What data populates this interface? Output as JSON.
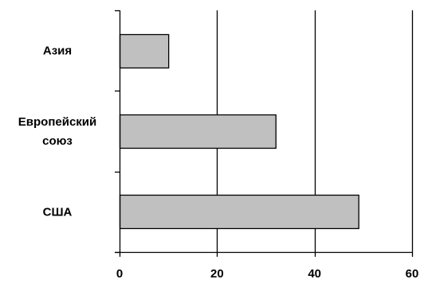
{
  "chart_data": {
    "type": "bar",
    "orientation": "horizontal",
    "categories": [
      "Азия",
      "Европейский союз",
      "США"
    ],
    "category_label_lines": [
      [
        "Азия"
      ],
      [
        "Европейский",
        "союз"
      ],
      [
        "США"
      ]
    ],
    "values": [
      10,
      32,
      49
    ],
    "xlim": [
      0,
      60
    ],
    "x_ticks": [
      "0",
      "20",
      "40",
      "60"
    ],
    "grid": "vertical",
    "legend": "none",
    "title": "",
    "xlabel": "",
    "ylabel": "",
    "colors": {
      "bar_fill": "#c0c0c0",
      "bar_stroke": "#000000",
      "grid": "#000000",
      "axis": "#000000"
    }
  }
}
